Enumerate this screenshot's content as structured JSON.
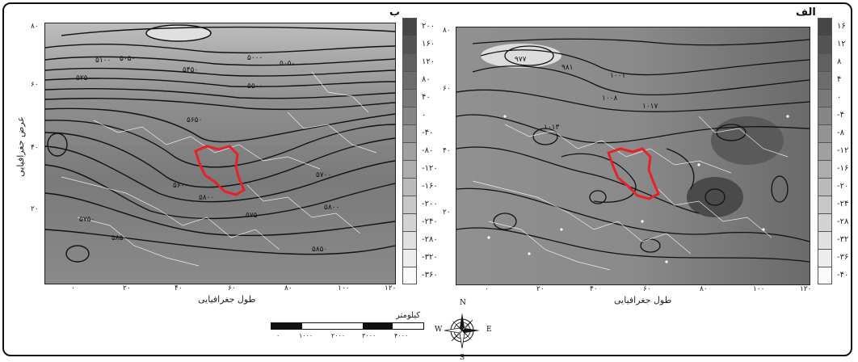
{
  "figure": {
    "panels": [
      {
        "id": "left",
        "label": "ب",
        "y_axis_title": "عرض جغرافیایی",
        "x_axis_title": "طول جغرافیایی",
        "x_ticks": [
          "۰",
          "۲۰",
          "۴۰",
          "۶۰",
          "۸۰",
          "۱۰۰",
          "۱۲۰"
        ],
        "y_ticks": [
          "۸۰",
          "۶۰",
          "۴۰",
          "۲۰"
        ],
        "contour_labels": [
          "۵۰۰۰",
          "۵۰۵۰",
          "۵۱۰۰",
          "۵۲۵۰",
          "۵۴۵۰",
          "۵۵۰۰",
          "۵۶۰۰",
          "۵۶۵۰",
          "۵۷۰۰",
          "۵۷۵۰",
          "۵۸۰۰",
          "۵۸۵۰",
          "۵۸۰۰"
        ],
        "colorbar": [
          "۲۰۰",
          "۱۶۰",
          "۱۲۰",
          "۸۰",
          "۴۰",
          "۰",
          "-۴۰",
          "-۸۰",
          "-۱۲۰",
          "-۱۶۰",
          "-۲۰۰",
          "-۲۴۰",
          "-۲۸۰",
          "-۳۲۰",
          "-۳۶۰"
        ]
      },
      {
        "id": "right",
        "label": "الف",
        "x_axis_title": "طول جغرافیایی",
        "x_ticks": [
          "۰",
          "۲۰",
          "۴۰",
          "۶۰",
          "۸۰",
          "۱۰۰",
          "۱۲۰"
        ],
        "y_ticks": [
          "۸۰",
          "۶۰",
          "۴۰",
          "۲۰"
        ],
        "contour_labels": [
          "۹۷۷",
          "۹۸۱",
          "۱۰۰۱",
          "۱۰۰۸",
          "۱۰۱۷",
          "۱۰۱۳"
        ],
        "colorbar": [
          "۱۶",
          "۱۲",
          "۸",
          "۴",
          "۰",
          "-۴",
          "-۸",
          "-۱۲",
          "-۱۶",
          "-۲۰",
          "-۲۴",
          "-۲۸",
          "-۳۲",
          "-۳۶",
          "-۴۰"
        ]
      }
    ],
    "scale_bar": {
      "title": "کیلومتر",
      "ticks": [
        "۰",
        "۱۰۰۰",
        "۲۰۰۰",
        "۳۰۰۰",
        "۴۰۰۰"
      ]
    },
    "compass": {
      "n": "N",
      "s": "S",
      "e": "E",
      "w": "W"
    },
    "colors": {
      "iran_outline": "#e8202a",
      "contour": "#111111",
      "borders": "#ffffff"
    }
  }
}
